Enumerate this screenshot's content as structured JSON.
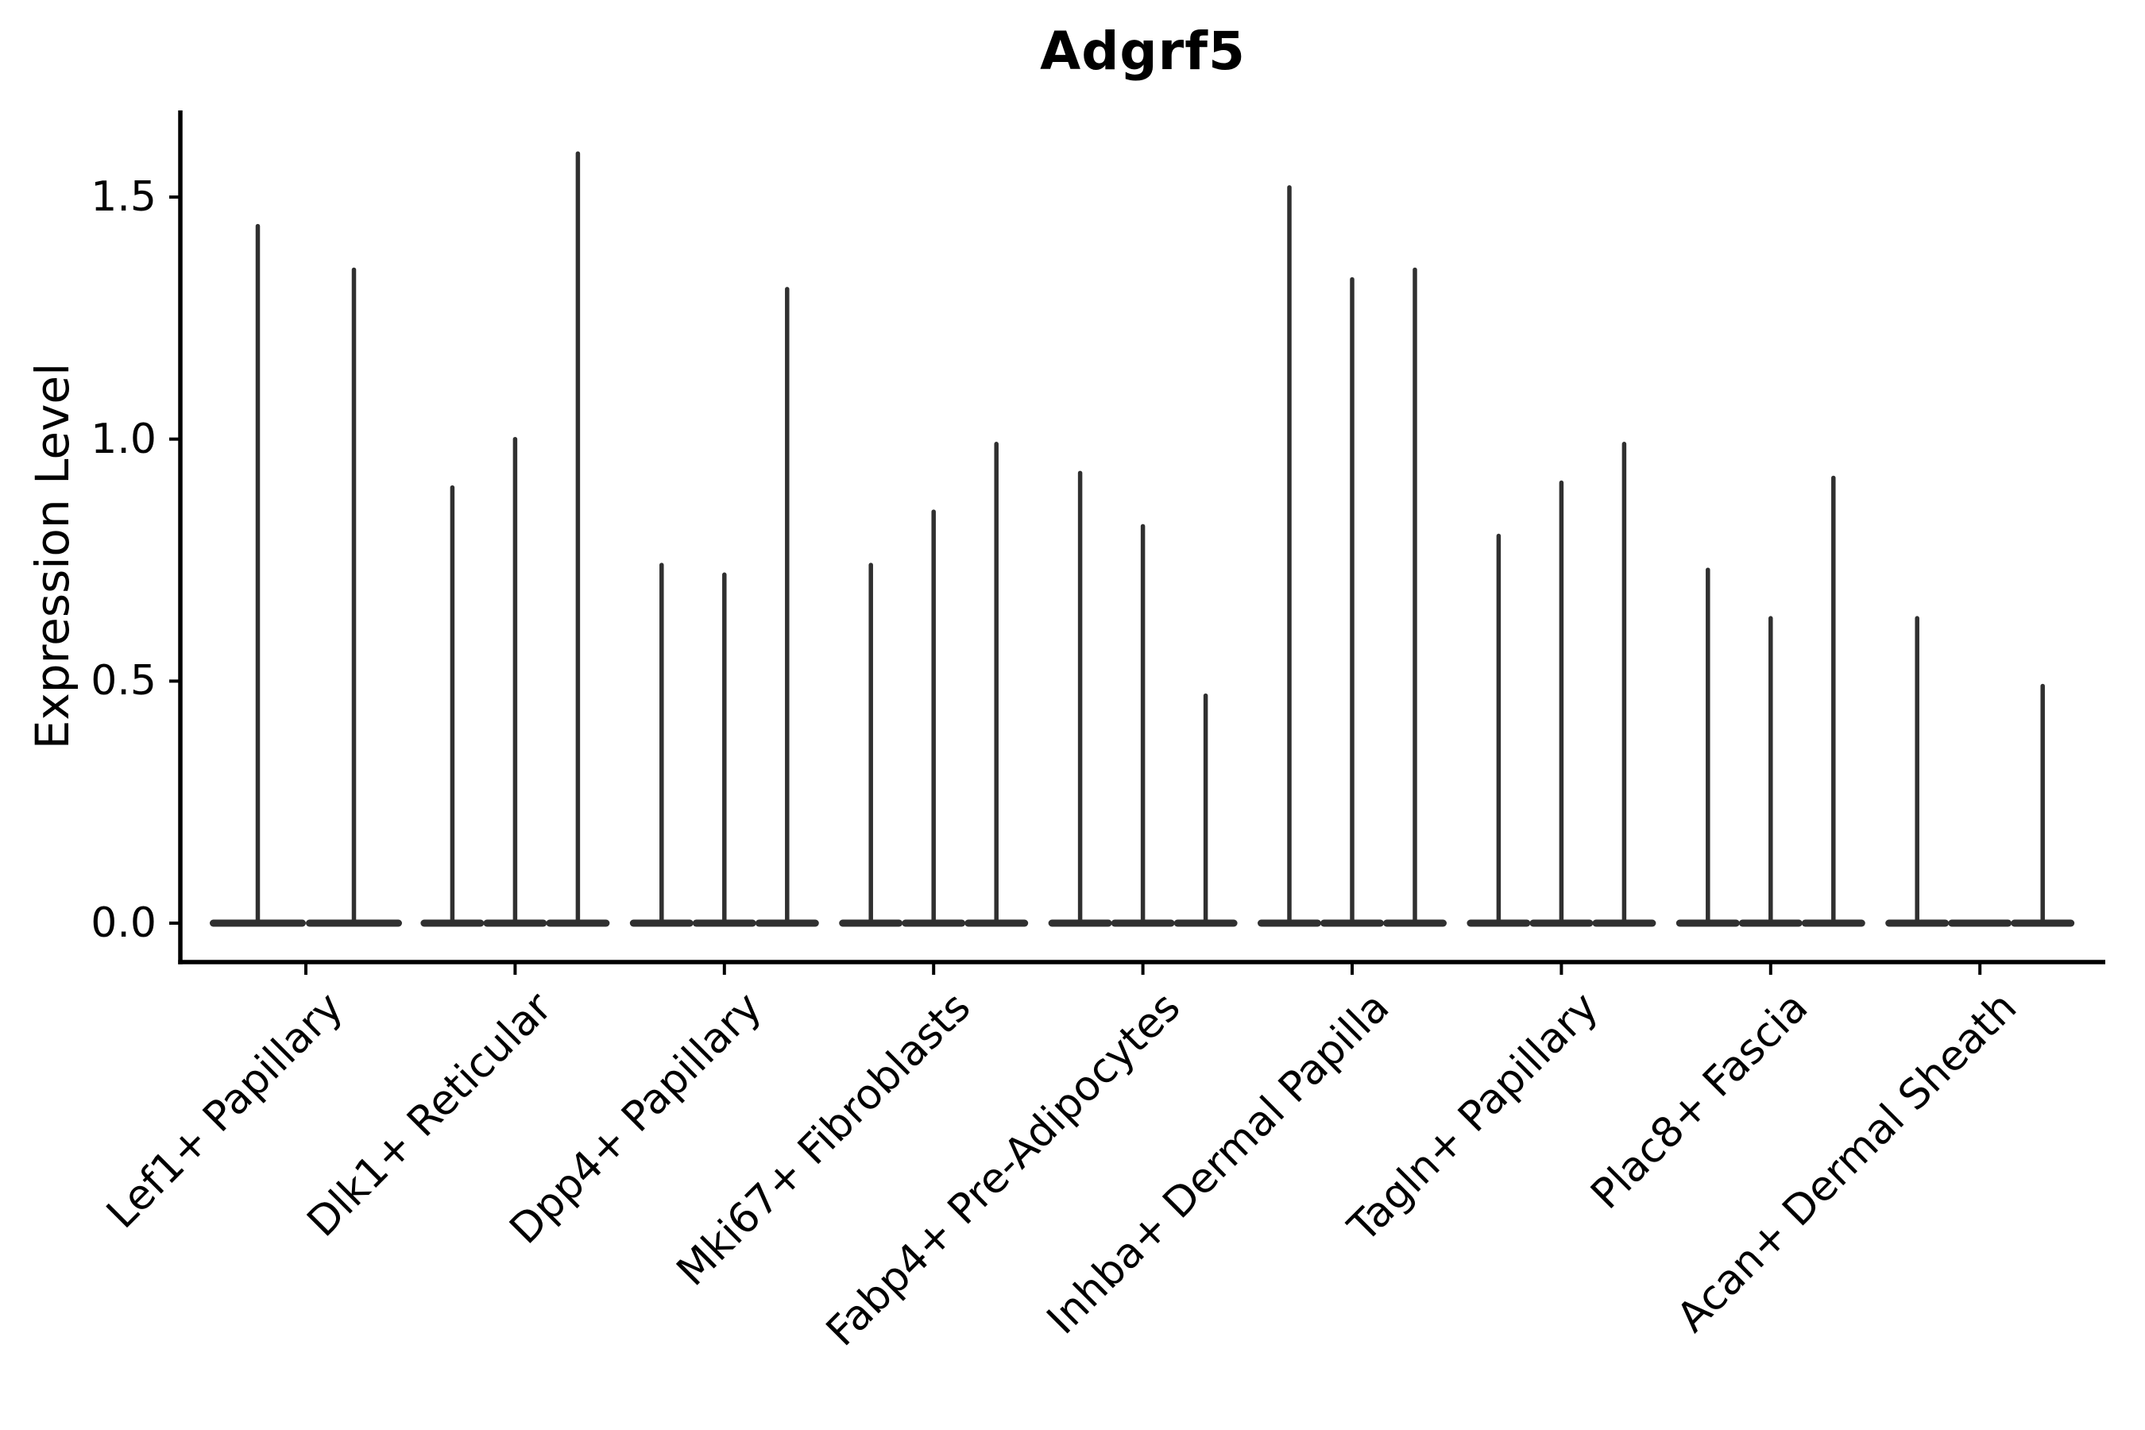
{
  "figure": {
    "title": "Adgrf5",
    "y_axis": {
      "label": "Expression Level",
      "tick_labels": [
        "0.0",
        "0.5",
        "1.0",
        "1.5"
      ]
    },
    "x_axis": {
      "tick_labels": [
        "Lef1+ Papillary",
        "Dlk1+ Reticular",
        "Dpp4+ Papillary",
        "Mki67+ Fibroblasts",
        "Fabp4+ Pre-Adipocytes",
        "Inhba+ Dermal Papilla",
        "Tagln+ Papillary",
        "Plac8+ Fascia",
        "Acan+ Dermal Sheath"
      ]
    }
  },
  "chart_data": {
    "type": "violin",
    "title": "Adgrf5",
    "xlabel": "",
    "ylabel": "Expression Level",
    "yticks": [
      0.0,
      0.5,
      1.0,
      1.5
    ],
    "ylim": [
      -0.08,
      1.68
    ],
    "grid": false,
    "legend": false,
    "categories": [
      "Lef1+ Papillary",
      "Dlk1+ Reticular",
      "Dpp4+ Papillary",
      "Mki67+ Fibroblasts",
      "Fabp4+ Pre-Adipocytes",
      "Inhba+ Dermal Papilla",
      "Tagln+ Papillary",
      "Plac8+ Fascia",
      "Acan+ Dermal Sheath"
    ],
    "series": [
      {
        "category": "Lef1+ Papillary",
        "violin_max_expression": [
          1.44,
          1.35
        ]
      },
      {
        "category": "Dlk1+ Reticular",
        "violin_max_expression": [
          0.9,
          1.0,
          1.59
        ]
      },
      {
        "category": "Dpp4+ Papillary",
        "violin_max_expression": [
          0.74,
          0.72,
          1.31
        ]
      },
      {
        "category": "Mki67+ Fibroblasts",
        "violin_max_expression": [
          0.74,
          0.85,
          0.99
        ]
      },
      {
        "category": "Fabp4+ Pre-Adipocytes",
        "violin_max_expression": [
          0.93,
          0.82,
          0.47
        ]
      },
      {
        "category": "Inhba+ Dermal Papilla",
        "violin_max_expression": [
          1.52,
          1.33,
          1.35
        ]
      },
      {
        "category": "Tagln+ Papillary",
        "violin_max_expression": [
          0.8,
          0.91,
          0.99
        ]
      },
      {
        "category": "Plac8+ Fascia",
        "violin_max_expression": [
          0.73,
          0.63,
          0.92
        ]
      },
      {
        "category": "Acan+ Dermal Sheath",
        "violin_max_expression": [
          0.63,
          0.0,
          0.49
        ]
      }
    ],
    "colors": {
      "violin": "#303030",
      "axis": "#000000",
      "text": "#000000",
      "background": "#ffffff"
    }
  }
}
